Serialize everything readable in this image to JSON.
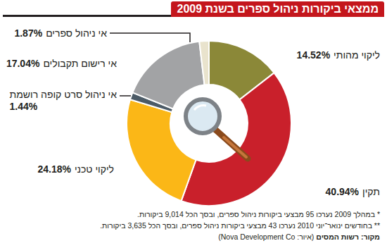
{
  "chart_data": {
    "type": "donut",
    "title": "ממצאי ביקורות ניהול ספרים בשנת 2009",
    "categories": [
      "ליקוי מהותי",
      "תקין",
      "ליקוי טכני",
      "אי ניהול סרט קופה רושמת",
      "אי רישום תקבולים",
      "אי ניהול ספרים"
    ],
    "values": [
      14.52,
      40.94,
      24.18,
      1.44,
      17.04,
      1.87
    ],
    "value_labels": [
      "14.52%",
      "40.94%",
      "24.18%",
      "1.44%",
      "17.04%",
      "1.87%"
    ],
    "colors": [
      "#8b8838",
      "#c9202b",
      "#fbb717",
      "#4c5b67",
      "#a2a3a5",
      "#e9e3cd"
    ],
    "data_labels": true,
    "annotations": [
      "* במהלך 2009 נערכו 95 מבצעי ביקורות ניהול ספרים, ובסך הכל 9,014 ביקורות.",
      "** בחודשים ינואר־יוני 2010 נערכו 43 מבצעי ביקורות ניהול ספרים, ובסך הכל 3,635 ביקורות.",
      "מקור: רשות המסים",
      "(איור: Nova Development Co)"
    ]
  }
}
